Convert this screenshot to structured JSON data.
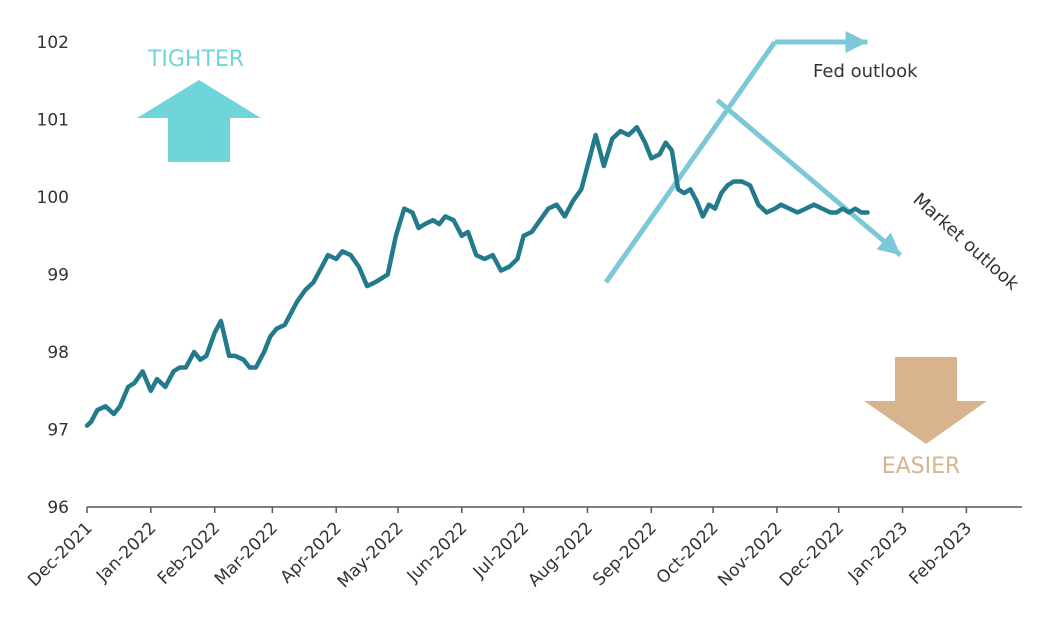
{
  "chart_data": {
    "type": "line",
    "title": "",
    "xlabel": "",
    "ylabel": "",
    "ylim": [
      96,
      102
    ],
    "yticks": [
      "96",
      "97",
      "98",
      "99",
      "100",
      "101",
      "102"
    ],
    "xticks": [
      "Dec-2021",
      "Jan-2022",
      "Feb-2022",
      "Mar-2022",
      "Apr-2022",
      "May-2022",
      "Jun-2022",
      "Jul-2022",
      "Aug-2022",
      "Sep-2022",
      "Oct-2022",
      "Nov-2022",
      "Dec-2022",
      "Jan-2023",
      "Feb-2023"
    ],
    "xlim": [
      "2021-12-01",
      "2023-02-28"
    ],
    "grid": false,
    "series": [
      {
        "name": "",
        "color": "#237a8c",
        "x": [
          "2021-12-01",
          "2021-12-03",
          "2021-12-06",
          "2021-12-10",
          "2021-12-14",
          "2021-12-17",
          "2021-12-21",
          "2021-12-24",
          "2021-12-28",
          "2022-01-01",
          "2022-01-04",
          "2022-01-08",
          "2022-01-12",
          "2022-01-15",
          "2022-01-18",
          "2022-01-22",
          "2022-01-25",
          "2022-01-28",
          "2022-02-01",
          "2022-02-04",
          "2022-02-08",
          "2022-02-11",
          "2022-02-15",
          "2022-02-18",
          "2022-02-21",
          "2022-02-25",
          "2022-02-28",
          "2022-03-03",
          "2022-03-07",
          "2022-03-10",
          "2022-03-13",
          "2022-03-17",
          "2022-03-21",
          "2022-03-25",
          "2022-03-28",
          "2022-04-01",
          "2022-04-04",
          "2022-04-08",
          "2022-04-12",
          "2022-04-16",
          "2022-04-20",
          "2022-04-23",
          "2022-04-26",
          "2022-04-30",
          "2022-05-04",
          "2022-05-08",
          "2022-05-11",
          "2022-05-14",
          "2022-05-18",
          "2022-05-21",
          "2022-05-24",
          "2022-05-28",
          "2022-06-01",
          "2022-06-04",
          "2022-06-08",
          "2022-06-12",
          "2022-06-16",
          "2022-06-20",
          "2022-06-24",
          "2022-06-28",
          "2022-07-01",
          "2022-07-05",
          "2022-07-09",
          "2022-07-13",
          "2022-07-17",
          "2022-07-21",
          "2022-07-25",
          "2022-07-29",
          "2022-08-01",
          "2022-08-05",
          "2022-08-09",
          "2022-08-13",
          "2022-08-17",
          "2022-08-21",
          "2022-08-25",
          "2022-08-29",
          "2022-09-01",
          "2022-09-05",
          "2022-09-08",
          "2022-09-11",
          "2022-09-14",
          "2022-09-17",
          "2022-09-20",
          "2022-09-23",
          "2022-09-26",
          "2022-09-29",
          "2022-10-02",
          "2022-10-05",
          "2022-10-08",
          "2022-10-11",
          "2022-10-15",
          "2022-10-19",
          "2022-10-23",
          "2022-10-27",
          "2022-10-31",
          "2022-11-03",
          "2022-11-07",
          "2022-11-11",
          "2022-11-15",
          "2022-11-19",
          "2022-11-23",
          "2022-11-27",
          "2022-11-30",
          "2022-12-03",
          "2022-12-06",
          "2022-12-09",
          "2022-12-12",
          "2022-12-15"
        ],
        "values": [
          97.05,
          97.1,
          97.25,
          97.3,
          97.2,
          97.3,
          97.55,
          97.6,
          97.75,
          97.5,
          97.65,
          97.55,
          97.75,
          97.8,
          97.8,
          98.0,
          97.9,
          97.95,
          98.25,
          98.4,
          97.95,
          97.95,
          97.9,
          97.8,
          97.8,
          98.0,
          98.2,
          98.3,
          98.35,
          98.5,
          98.65,
          98.8,
          98.9,
          99.1,
          99.25,
          99.2,
          99.3,
          99.25,
          99.1,
          98.85,
          98.9,
          98.95,
          99.0,
          99.5,
          99.85,
          99.8,
          99.6,
          99.65,
          99.7,
          99.65,
          99.75,
          99.7,
          99.5,
          99.55,
          99.25,
          99.2,
          99.25,
          99.05,
          99.1,
          99.2,
          99.5,
          99.55,
          99.7,
          99.85,
          99.9,
          99.75,
          99.95,
          100.1,
          100.4,
          100.8,
          100.4,
          100.75,
          100.85,
          100.8,
          100.9,
          100.7,
          100.5,
          100.55,
          100.7,
          100.6,
          100.1,
          100.05,
          100.1,
          99.95,
          99.75,
          99.9,
          99.85,
          100.05,
          100.15,
          100.2,
          100.2,
          100.15,
          99.9,
          99.8,
          99.85,
          99.9,
          99.85,
          99.8,
          99.85,
          99.9,
          99.85,
          99.8,
          99.8,
          99.85,
          99.8,
          99.85,
          99.8,
          99.8
        ]
      }
    ],
    "annotations": {
      "tighter_label": "TIGHTER",
      "tighter_color": "#6fd5d8",
      "easier_label": "EASIER",
      "easier_color": "#d7b48e",
      "fed_outlook_label": "Fed outlook",
      "market_outlook_label": "Market outlook",
      "outlook_line_color": "#7dc8d8",
      "outlook_lines": {
        "base_start": {
          "x": "2022-08-10",
          "y": 98.9
        },
        "pivot": {
          "x": "2022-10-03",
          "y": 101.25
        },
        "fed_peak": {
          "x": "2022-10-31",
          "y": 102.0
        },
        "fed_end": {
          "x": "2022-12-15",
          "y": 102.0
        },
        "market_end": {
          "x": "2022-12-31",
          "y": 99.25
        }
      }
    }
  }
}
